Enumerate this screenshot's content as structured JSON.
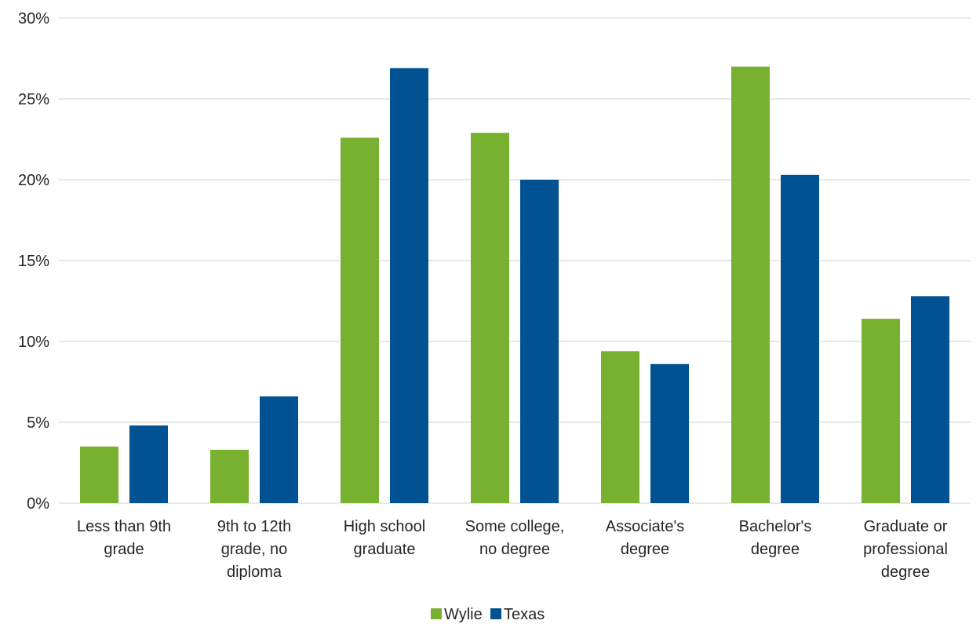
{
  "chart_data": {
    "type": "bar",
    "categories": [
      [
        "Less than 9th",
        "grade"
      ],
      [
        "9th to 12th",
        "grade, no",
        "diploma"
      ],
      [
        "High school",
        "graduate"
      ],
      [
        "Some college,",
        "no degree"
      ],
      [
        "Associate's",
        "degree"
      ],
      [
        "Bachelor's",
        "degree"
      ],
      [
        "Graduate or",
        "professional",
        "degree"
      ]
    ],
    "series": [
      {
        "name": "Wylie",
        "color": "#78b030",
        "values": [
          3.5,
          3.3,
          22.6,
          22.9,
          9.4,
          27.0,
          11.4
        ]
      },
      {
        "name": "Texas",
        "color": "#005293",
        "values": [
          4.8,
          6.6,
          26.9,
          20.0,
          8.6,
          20.3,
          12.8
        ]
      }
    ],
    "ylim": [
      0,
      30
    ],
    "yticks": [
      "0%",
      "5%",
      "10%",
      "15%",
      "20%",
      "25%",
      "30%"
    ],
    "ytick_values": [
      0,
      5,
      10,
      15,
      20,
      25,
      30
    ],
    "grid": true,
    "legend": "bottom-center"
  }
}
